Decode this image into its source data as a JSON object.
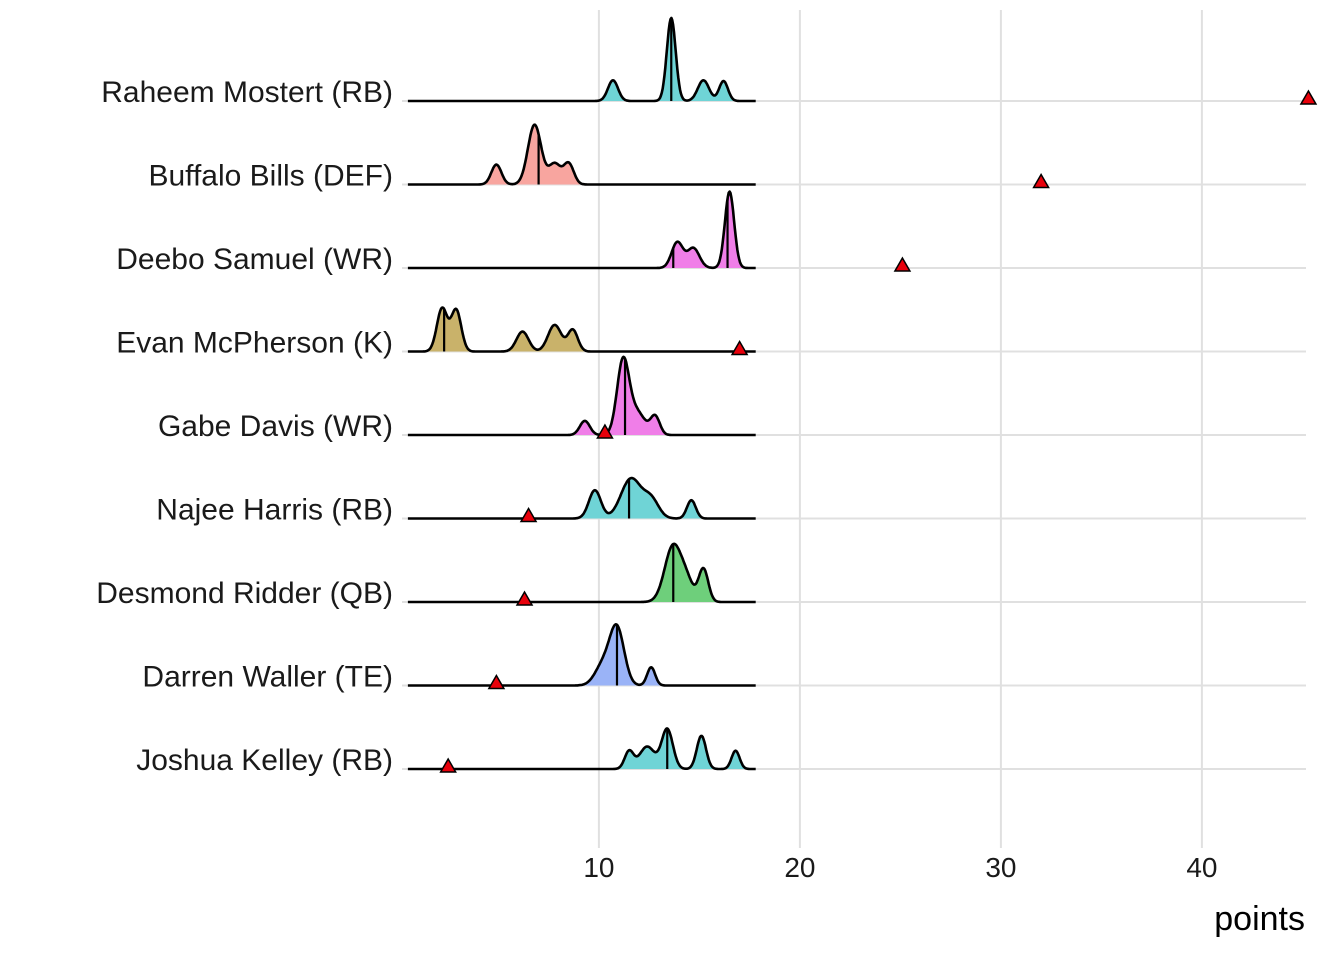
{
  "chart_data": {
    "type": "ridgeline",
    "xlabel": "points",
    "ylabel": "",
    "xlim": [
      1.0,
      46.0
    ],
    "xticks": [
      10,
      20,
      30,
      40
    ],
    "grid": true,
    "colors": {
      "marker": "#e8000b",
      "line": "#000000",
      "grid": "#e0e0e0"
    },
    "series": [
      {
        "name": "Raheem Mostert (RB)",
        "fill": "#6fd4d6",
        "actual": 45.3,
        "quantiles": [
          13.6
        ],
        "range": [
          0.5,
          17.8
        ],
        "peaks": [
          [
            10.7,
            0.25,
            0.25
          ],
          [
            13.6,
            1.0,
            0.22
          ],
          [
            15.2,
            0.25,
            0.28
          ],
          [
            16.2,
            0.24,
            0.22
          ]
        ]
      },
      {
        "name": "Buffalo Bills (DEF)",
        "fill": "#f8a59f",
        "actual": 32.0,
        "quantiles": [
          7.0
        ],
        "range": [
          0.5,
          17.8
        ],
        "peaks": [
          [
            4.9,
            0.24,
            0.25
          ],
          [
            6.8,
            0.72,
            0.33
          ],
          [
            7.8,
            0.25,
            0.3
          ],
          [
            8.5,
            0.25,
            0.25
          ]
        ]
      },
      {
        "name": "Deebo Samuel (WR)",
        "fill": "#f07ee8",
        "actual": 25.1,
        "quantiles": [
          13.7,
          16.4
        ],
        "range": [
          0.5,
          17.8
        ],
        "peaks": [
          [
            13.9,
            0.31,
            0.28
          ],
          [
            14.7,
            0.24,
            0.3
          ],
          [
            16.5,
            0.92,
            0.23
          ]
        ]
      },
      {
        "name": "Evan McPherson (K)",
        "fill": "#c9b26a",
        "actual": 17.0,
        "quantiles": [
          2.3
        ],
        "range": [
          0.5,
          17.8
        ],
        "peaks": [
          [
            2.2,
            0.52,
            0.26
          ],
          [
            2.9,
            0.5,
            0.25
          ],
          [
            6.2,
            0.24,
            0.3
          ],
          [
            7.8,
            0.32,
            0.33
          ],
          [
            8.7,
            0.26,
            0.25
          ]
        ]
      },
      {
        "name": "Gabe Davis (WR)",
        "fill": "#f07ee8",
        "actual": 10.3,
        "quantiles": [
          11.3
        ],
        "range": [
          0.5,
          17.8
        ],
        "peaks": [
          [
            9.3,
            0.17,
            0.25
          ],
          [
            11.2,
            0.88,
            0.3
          ],
          [
            11.9,
            0.27,
            0.4
          ],
          [
            12.8,
            0.22,
            0.23
          ]
        ]
      },
      {
        "name": "Najee Harris (RB)",
        "fill": "#6fd4d6",
        "actual": 6.5,
        "quantiles": [
          11.5
        ],
        "range": [
          0.5,
          17.8
        ],
        "peaks": [
          [
            9.8,
            0.34,
            0.3
          ],
          [
            11.6,
            0.48,
            0.5
          ],
          [
            12.6,
            0.22,
            0.38
          ],
          [
            14.6,
            0.22,
            0.22
          ]
        ]
      },
      {
        "name": "Desmond Ridder (QB)",
        "fill": "#6ecf7b",
        "actual": 6.3,
        "quantiles": [
          13.7
        ],
        "range": [
          0.5,
          17.8
        ],
        "peaks": [
          [
            13.7,
            0.68,
            0.42
          ],
          [
            14.4,
            0.2,
            0.32
          ],
          [
            15.2,
            0.4,
            0.24
          ]
        ]
      },
      {
        "name": "Darren Waller (TE)",
        "fill": "#9ab3f7",
        "actual": 4.9,
        "quantiles": [
          10.9
        ],
        "range": [
          0.5,
          17.8
        ],
        "peaks": [
          [
            10.2,
            0.24,
            0.4
          ],
          [
            10.9,
            0.68,
            0.36
          ],
          [
            12.6,
            0.22,
            0.2
          ]
        ]
      },
      {
        "name": "Joshua Kelley (RB)",
        "fill": "#6fd4d6",
        "actual": 2.5,
        "quantiles": [
          13.4
        ],
        "range": [
          0.5,
          17.8
        ],
        "peaks": [
          [
            11.5,
            0.21,
            0.22
          ],
          [
            12.4,
            0.27,
            0.38
          ],
          [
            13.4,
            0.48,
            0.28
          ],
          [
            15.1,
            0.4,
            0.23
          ],
          [
            16.8,
            0.22,
            0.2
          ]
        ]
      }
    ]
  }
}
